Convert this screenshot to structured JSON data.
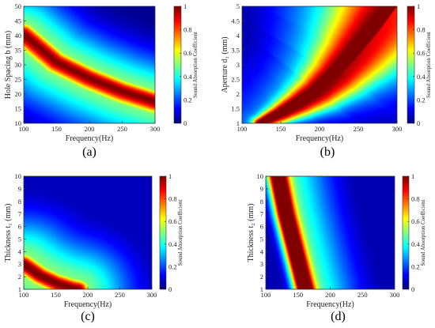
{
  "chart_data": [
    {
      "type": "heatmap",
      "panel_label": "(a)",
      "xlabel": "Frequency(Hz)",
      "ylabel": "Hole Spacing b (mm)",
      "colorbar_label": "Sound Absorption Coefficient",
      "xlim": [
        100,
        300
      ],
      "ylim": [
        10,
        50
      ],
      "x_ticks": [
        "100",
        "150",
        "200",
        "250",
        "300"
      ],
      "y_ticks": [
        "10",
        "15",
        "20",
        "25",
        "30",
        "35",
        "40",
        "45",
        "50"
      ],
      "colorbar_ticks": [
        "0",
        "0.2",
        "0.4",
        "0.6",
        "0.8",
        "1"
      ],
      "colormap": "jet",
      "color_range": [
        0,
        1
      ],
      "ridge": {
        "description_of_peak": "max absorption band",
        "points": [
          [
            100,
            40.5
          ],
          [
            150,
            31
          ],
          [
            200,
            25.5
          ],
          [
            250,
            21
          ],
          [
            300,
            17.5
          ]
        ],
        "peak_value": 1.0
      }
    },
    {
      "type": "heatmap",
      "panel_label": "(b)",
      "xlabel": "Frequency(Hz)",
      "ylabel": "Aperture d₁ (mm)",
      "colorbar_label": "Sound Absorption Coefficient",
      "xlim": [
        100,
        300
      ],
      "ylim": [
        1,
        5
      ],
      "x_ticks": [
        "100",
        "150",
        "200",
        "250",
        "300"
      ],
      "y_ticks": [
        "1",
        "1.5",
        "2",
        "2.5",
        "3",
        "3.5",
        "4",
        "4.5",
        "5"
      ],
      "colorbar_ticks": [
        "0",
        "0.2",
        "0.4",
        "0.6",
        "0.8",
        "1"
      ],
      "colormap": "jet",
      "color_range": [
        0,
        1
      ],
      "ridge": {
        "points": [
          [
            125,
            1.0
          ],
          [
            150,
            1.3
          ],
          [
            175,
            1.65
          ],
          [
            200,
            2.05
          ],
          [
            225,
            2.6
          ],
          [
            250,
            3.3
          ],
          [
            275,
            4.1
          ],
          [
            300,
            5.0
          ]
        ],
        "peak_value": 0.95
      }
    },
    {
      "type": "heatmap",
      "panel_label": "(c)",
      "xlabel": "Frequency(Hz)",
      "ylabel": "Thickness t₁ (mm)",
      "colorbar_label": "Sound Absorption Coefficient",
      "xlim": [
        100,
        300
      ],
      "ylim": [
        1,
        10
      ],
      "x_ticks": [
        "100",
        "150",
        "200",
        "250",
        "300"
      ],
      "y_ticks": [
        "1",
        "2",
        "3",
        "4",
        "5",
        "6",
        "7",
        "8",
        "9",
        "10"
      ],
      "colorbar_ticks": [
        "0",
        "0.2",
        "0.4",
        "0.6",
        "0.8",
        "1"
      ],
      "colormap": "jet",
      "color_range": [
        0,
        1
      ],
      "ridge": {
        "points": [
          [
            100,
            3.0
          ],
          [
            125,
            2.1
          ],
          [
            150,
            1.5
          ],
          [
            175,
            1.1
          ],
          [
            185,
            1.0
          ]
        ],
        "peak_value": 0.95
      }
    },
    {
      "type": "heatmap",
      "panel_label": "(d)",
      "xlabel": "Frequency(Hz)",
      "ylabel": "Thickness t₂ (mm)",
      "colorbar_label": "Sound Absorption Coefficient",
      "xlim": [
        100,
        300
      ],
      "ylim": [
        1,
        10
      ],
      "x_ticks": [
        "100",
        "150",
        "200",
        "250",
        "300"
      ],
      "y_ticks": [
        "1",
        "2",
        "3",
        "4",
        "5",
        "6",
        "7",
        "8",
        "9",
        "10"
      ],
      "colorbar_ticks": [
        "0",
        "0.2",
        "0.4",
        "0.6",
        "0.8",
        "1"
      ],
      "colormap": "jet",
      "color_range": [
        0,
        1
      ],
      "ridge": {
        "points": [
          [
            160,
            1.0
          ],
          [
            150,
            3.0
          ],
          [
            140,
            5.0
          ],
          [
            130,
            7.0
          ],
          [
            122,
            9.0
          ],
          [
            118,
            10.0
          ]
        ],
        "peak_value": 1.0
      }
    }
  ]
}
